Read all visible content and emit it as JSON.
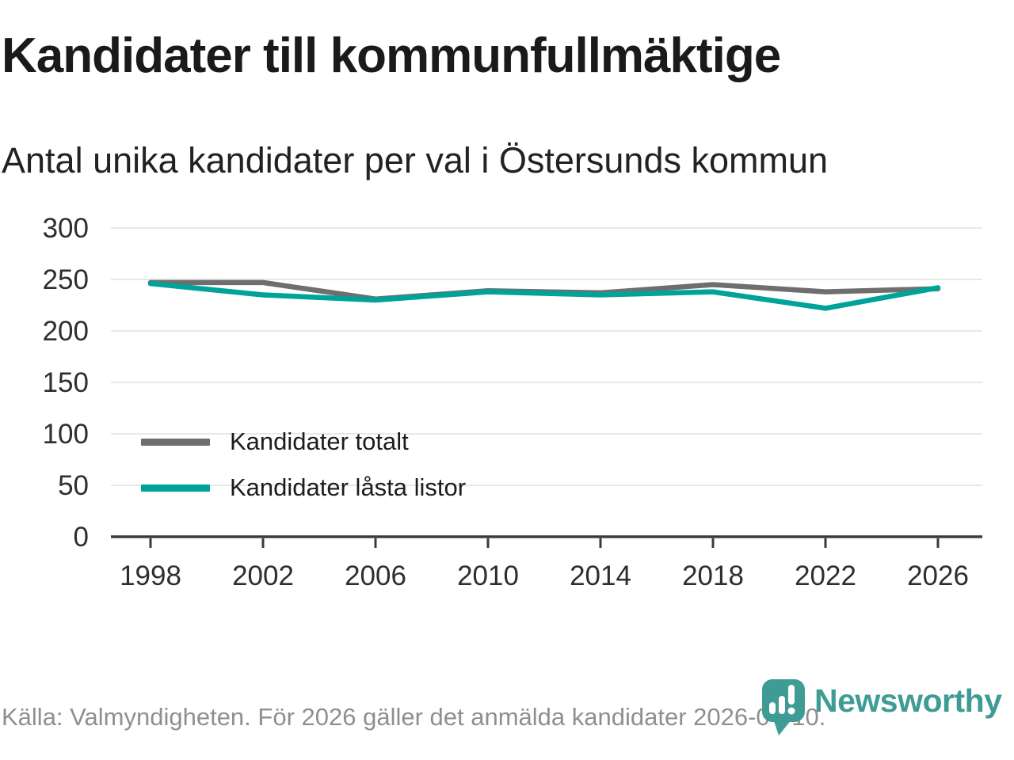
{
  "title": "Kandidater till kommunfullmäktige",
  "subtitle": "Antal unika kandidater per val i Östersunds kommun",
  "footer": {
    "source_text": "Källa: Valmyndigheten. För 2026 gäller det anmälda kandidater 2026-04-10.",
    "brand_name": "Newsworthy"
  },
  "colors": {
    "total_line": "#6e6e6e",
    "locked_line": "#00a39a",
    "brand_teal": "#3f9c94",
    "grid": "#e8e8e8",
    "axis": "#3a3a3a",
    "tick_text": "#2e2e2e",
    "footer_text": "#8f8f8f"
  },
  "legend": {
    "items": [
      {
        "label": "Kandidater totalt",
        "color": "#6e6e6e"
      },
      {
        "label": "Kandidater låsta listor",
        "color": "#00a39a"
      }
    ]
  },
  "chart_data": {
    "type": "line",
    "title": "Kandidater till kommunfullmäktige",
    "subtitle": "Antal unika kandidater per val i Östersunds kommun",
    "x": [
      1998,
      2002,
      2006,
      2010,
      2014,
      2018,
      2022,
      2026
    ],
    "series": [
      {
        "name": "Kandidater totalt",
        "color": "#6e6e6e",
        "values": [
          247,
          247,
          231,
          239,
          237,
          245,
          238,
          241
        ]
      },
      {
        "name": "Kandidater låsta listor",
        "color": "#00a39a",
        "values": [
          246,
          235,
          230,
          238,
          235,
          238,
          222,
          242
        ]
      }
    ],
    "yticks": [
      0,
      50,
      100,
      150,
      200,
      250,
      300
    ],
    "ylim": [
      0,
      300
    ],
    "xlabel": "",
    "ylabel": "",
    "grid": true,
    "legend_position": "inside-left-middle"
  }
}
